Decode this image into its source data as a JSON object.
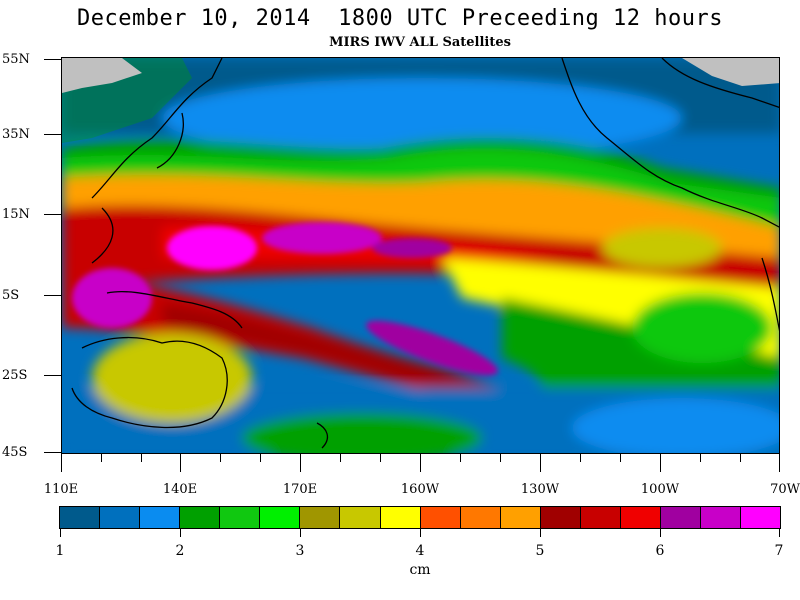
{
  "header": {
    "title": "December 10, 2014  1800 UTC Preceeding 12 hours",
    "subtitle": "MIRS IWV ALL Satellites"
  },
  "map": {
    "lat_labels": [
      "55N",
      "35N",
      "15N",
      "5S",
      "25S",
      "45S"
    ],
    "lon_labels": [
      "110E",
      "140E",
      "170E",
      "160W",
      "130W",
      "100W",
      "70W"
    ],
    "land_color": "#c0c0c0",
    "coastline_color": "#000000"
  },
  "colorbar": {
    "colors": [
      "#005a8c",
      "#0070be",
      "#0a8cf0",
      "#00a000",
      "#10c810",
      "#00f000",
      "#a09600",
      "#c8c800",
      "#ffff00",
      "#ff5000",
      "#ff7800",
      "#ffa000",
      "#a00000",
      "#c80000",
      "#f00000",
      "#a000a0",
      "#c800c8",
      "#ff00ff"
    ],
    "tick_labels": [
      "1",
      "2",
      "3",
      "4",
      "5",
      "6",
      "7"
    ],
    "unit": "cm"
  }
}
